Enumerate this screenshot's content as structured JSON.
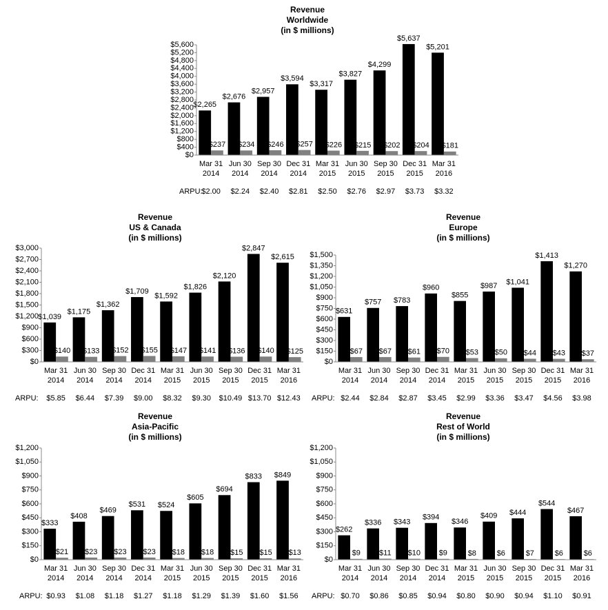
{
  "chart_data": [
    {
      "type": "bar",
      "title": "Revenue",
      "subtitle": "Worldwide",
      "note": "(in $ millions)",
      "categories": [
        "Mar 31 2014",
        "Jun 30 2014",
        "Sep 30 2014",
        "Dec 31 2014",
        "Mar 31 2015",
        "Jun 30 2015",
        "Sep 30 2015",
        "Dec 31 2015",
        "Mar 31 2016"
      ],
      "series": [
        {
          "color": "#000000",
          "values": [
            2265,
            2676,
            2957,
            3594,
            3317,
            3827,
            4299,
            5637,
            5201
          ],
          "value_labels": [
            "$2,265",
            "$2,676",
            "$2,957",
            "$3,594",
            "$3,317",
            "$3,827",
            "$4,299",
            "$5,637",
            "$5,201"
          ]
        },
        {
          "color": "#808080",
          "values": [
            237,
            234,
            246,
            257,
            226,
            215,
            202,
            204,
            181
          ],
          "value_labels": [
            "$237",
            "$234",
            "$246",
            "$257",
            "$226",
            "$215",
            "$202",
            "$204",
            "$181"
          ]
        }
      ],
      "ylim": [
        0,
        5600
      ],
      "yticks": [
        {
          "value": 0,
          "label": "$0"
        },
        {
          "value": 400,
          "label": "$400"
        },
        {
          "value": 800,
          "label": "$800"
        },
        {
          "value": 1200,
          "label": "$1,200"
        },
        {
          "value": 1600,
          "label": "$1,600"
        },
        {
          "value": 2000,
          "label": "$2,000"
        },
        {
          "value": 2400,
          "label": "$2,400"
        },
        {
          "value": 2800,
          "label": "$2,800"
        },
        {
          "value": 3200,
          "label": "$3,200"
        },
        {
          "value": 3600,
          "label": "$3,600"
        },
        {
          "value": 4000,
          "label": "$4,000"
        },
        {
          "value": 4400,
          "label": "$4,400"
        },
        {
          "value": 4800,
          "label": "$4,800"
        },
        {
          "value": 5200,
          "label": "$5,200"
        },
        {
          "value": 5600,
          "label": "$5,600"
        }
      ],
      "arpu": {
        "label": "ARPU:",
        "values": [
          2.0,
          2.24,
          2.4,
          2.81,
          2.5,
          2.76,
          2.97,
          3.73,
          3.32
        ],
        "value_labels": [
          "$2.00",
          "$2.24",
          "$2.40",
          "$2.81",
          "$2.50",
          "$2.76",
          "$2.97",
          "$3.73",
          "$3.32"
        ]
      }
    },
    {
      "type": "bar",
      "title": "Revenue",
      "subtitle": "US & Canada",
      "note": "(in $ millions)",
      "categories": [
        "Mar 31 2014",
        "Jun 30 2014",
        "Sep 30 2014",
        "Dec 31 2014",
        "Mar 31 2015",
        "Jun 30 2015",
        "Sep 30 2015",
        "Dec 31 2015",
        "Mar 31 2016"
      ],
      "series": [
        {
          "color": "#000000",
          "values": [
            1039,
            1175,
            1362,
            1709,
            1592,
            1826,
            2120,
            2847,
            2615
          ],
          "value_labels": [
            "$1,039",
            "$1,175",
            "$1,362",
            "$1,709",
            "$1,592",
            "$1,826",
            "$2,120",
            "$2,847",
            "$2,615"
          ]
        },
        {
          "color": "#808080",
          "values": [
            140,
            133,
            152,
            155,
            147,
            141,
            136,
            140,
            125
          ],
          "value_labels": [
            "$140",
            "$133",
            "$152",
            "$155",
            "$147",
            "$141",
            "$136",
            "$140",
            "$125"
          ]
        }
      ],
      "ylim": [
        0,
        3000
      ],
      "yticks": [
        {
          "value": 0,
          "label": "$0"
        },
        {
          "value": 300,
          "label": "$300"
        },
        {
          "value": 600,
          "label": "$600"
        },
        {
          "value": 900,
          "label": "$900"
        },
        {
          "value": 1200,
          "label": "$1,200"
        },
        {
          "value": 1500,
          "label": "$1,500"
        },
        {
          "value": 1800,
          "label": "$1,800"
        },
        {
          "value": 2100,
          "label": "$2,100"
        },
        {
          "value": 2400,
          "label": "$2,400"
        },
        {
          "value": 2700,
          "label": "$2,700"
        },
        {
          "value": 3000,
          "label": "$3,000"
        }
      ],
      "arpu": {
        "label": "ARPU:",
        "values": [
          5.85,
          6.44,
          7.39,
          9.0,
          8.32,
          9.3,
          10.49,
          13.7,
          12.43
        ],
        "value_labels": [
          "$5.85",
          "$6.44",
          "$7.39",
          "$9.00",
          "$8.32",
          "$9.30",
          "$10.49",
          "$13.70",
          "$12.43"
        ]
      }
    },
    {
      "type": "bar",
      "title": "Revenue",
      "subtitle": "Europe",
      "note": "(in $ millions)",
      "categories": [
        "Mar 31 2014",
        "Jun 30 2014",
        "Sep 30 2014",
        "Dec 31 2014",
        "Mar 31 2015",
        "Jun 30 2015",
        "Sep 30 2015",
        "Dec 31 2015",
        "Mar 31 2016"
      ],
      "series": [
        {
          "color": "#000000",
          "values": [
            631,
            757,
            783,
            960,
            855,
            987,
            1041,
            1413,
            1270
          ],
          "value_labels": [
            "$631",
            "$757",
            "$783",
            "$960",
            "$855",
            "$987",
            "$1,041",
            "$1,413",
            "$1,270"
          ]
        },
        {
          "color": "#808080",
          "values": [
            67,
            67,
            61,
            70,
            53,
            50,
            44,
            43,
            37
          ],
          "value_labels": [
            "$67",
            "$67",
            "$61",
            "$70",
            "$53",
            "$50",
            "$44",
            "$43",
            "$37"
          ]
        }
      ],
      "ylim": [
        0,
        1500
      ],
      "yticks": [
        {
          "value": 0,
          "label": "$0"
        },
        {
          "value": 150,
          "label": "$150"
        },
        {
          "value": 300,
          "label": "$300"
        },
        {
          "value": 450,
          "label": "$450"
        },
        {
          "value": 600,
          "label": "$600"
        },
        {
          "value": 750,
          "label": "$750"
        },
        {
          "value": 900,
          "label": "$900"
        },
        {
          "value": 1050,
          "label": "$1,050"
        },
        {
          "value": 1200,
          "label": "$1,200"
        },
        {
          "value": 1350,
          "label": "$1,350"
        },
        {
          "value": 1500,
          "label": "$1,500"
        }
      ],
      "arpu": {
        "label": "ARPU:",
        "values": [
          2.44,
          2.84,
          2.87,
          3.45,
          2.99,
          3.36,
          3.47,
          4.56,
          3.98
        ],
        "value_labels": [
          "$2.44",
          "$2.84",
          "$2.87",
          "$3.45",
          "$2.99",
          "$3.36",
          "$3.47",
          "$4.56",
          "$3.98"
        ]
      }
    },
    {
      "type": "bar",
      "title": "Revenue",
      "subtitle": "Asia-Pacific",
      "note": "(in $ millions)",
      "categories": [
        "Mar 31 2014",
        "Jun 30 2014",
        "Sep 30 2014",
        "Dec 31 2014",
        "Mar 31 2015",
        "Jun 30 2015",
        "Sep 30 2015",
        "Dec 31 2015",
        "Mar 31 2016"
      ],
      "series": [
        {
          "color": "#000000",
          "values": [
            333,
            408,
            469,
            531,
            524,
            605,
            694,
            833,
            849
          ],
          "value_labels": [
            "$333",
            "$408",
            "$469",
            "$531",
            "$524",
            "$605",
            "$694",
            "$833",
            "$849"
          ]
        },
        {
          "color": "#808080",
          "values": [
            21,
            23,
            23,
            23,
            18,
            18,
            15,
            15,
            13
          ],
          "value_labels": [
            "$21",
            "$23",
            "$23",
            "$23",
            "$18",
            "$18",
            "$15",
            "$15",
            "$13"
          ]
        }
      ],
      "ylim": [
        0,
        1200
      ],
      "yticks": [
        {
          "value": 0,
          "label": "$0"
        },
        {
          "value": 150,
          "label": "$150"
        },
        {
          "value": 300,
          "label": "$300"
        },
        {
          "value": 450,
          "label": "$450"
        },
        {
          "value": 600,
          "label": "$600"
        },
        {
          "value": 750,
          "label": "$750"
        },
        {
          "value": 900,
          "label": "$900"
        },
        {
          "value": 1050,
          "label": "$1,050"
        },
        {
          "value": 1200,
          "label": "$1,200"
        }
      ],
      "arpu": {
        "label": "ARPU:",
        "values": [
          0.93,
          1.08,
          1.18,
          1.27,
          1.18,
          1.29,
          1.39,
          1.6,
          1.56
        ],
        "value_labels": [
          "$0.93",
          "$1.08",
          "$1.18",
          "$1.27",
          "$1.18",
          "$1.29",
          "$1.39",
          "$1.60",
          "$1.56"
        ]
      }
    },
    {
      "type": "bar",
      "title": "Revenue",
      "subtitle": "Rest of World",
      "note": "(in $ millions)",
      "categories": [
        "Mar 31 2014",
        "Jun 30 2014",
        "Sep 30 2014",
        "Dec 31 2014",
        "Mar 31 2015",
        "Jun 30 2015",
        "Sep 30 2015",
        "Dec 31 2015",
        "Mar 31 2016"
      ],
      "series": [
        {
          "color": "#000000",
          "values": [
            262,
            336,
            343,
            394,
            346,
            409,
            444,
            544,
            467
          ],
          "value_labels": [
            "$262",
            "$336",
            "$343",
            "$394",
            "$346",
            "$409",
            "$444",
            "$544",
            "$467"
          ]
        },
        {
          "color": "#808080",
          "values": [
            9,
            11,
            10,
            9,
            8,
            6,
            7,
            6,
            6
          ],
          "value_labels": [
            "$9",
            "$11",
            "$10",
            "$9",
            "$8",
            "$6",
            "$7",
            "$6",
            "$6"
          ]
        }
      ],
      "ylim": [
        0,
        1200
      ],
      "yticks": [
        {
          "value": 0,
          "label": "$0"
        },
        {
          "value": 150,
          "label": "$150"
        },
        {
          "value": 300,
          "label": "$300"
        },
        {
          "value": 450,
          "label": "$450"
        },
        {
          "value": 600,
          "label": "$600"
        },
        {
          "value": 750,
          "label": "$750"
        },
        {
          "value": 900,
          "label": "$900"
        },
        {
          "value": 1050,
          "label": "$1,050"
        },
        {
          "value": 1200,
          "label": "$1,200"
        }
      ],
      "arpu": {
        "label": "ARPU:",
        "values": [
          0.7,
          0.86,
          0.85,
          0.94,
          0.8,
          0.9,
          0.94,
          1.1,
          0.91
        ],
        "value_labels": [
          "$0.70",
          "$0.86",
          "$0.85",
          "$0.94",
          "$0.80",
          "$0.90",
          "$0.94",
          "$1.10",
          "$0.91"
        ]
      }
    }
  ]
}
